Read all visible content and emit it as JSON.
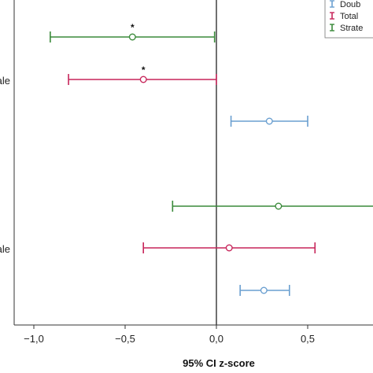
{
  "chart_data": {
    "type": "errorbar",
    "orientation": "horizontal",
    "xlabel": "95% CI z-score",
    "xlim": [
      -1.2,
      0.85
    ],
    "x_ticks": [
      -1.0,
      -0.5,
      0.0,
      0.5
    ],
    "x_tick_labels": [
      "−1,0",
      "−0,5",
      "0,0",
      "0,5"
    ],
    "reference_line": 0.0,
    "groups": [
      {
        "label": "ale",
        "rows": [
          {
            "series": "Strate",
            "mean": -0.46,
            "low": -0.91,
            "high": -0.01,
            "significant": true
          },
          {
            "series": "Total",
            "mean": -0.4,
            "low": -0.81,
            "high": 0.0,
            "significant": true
          },
          {
            "series": "Doub",
            "mean": 0.29,
            "low": 0.08,
            "high": 0.5,
            "significant": false
          }
        ]
      },
      {
        "label": "ale",
        "rows": [
          {
            "series": "Strate",
            "mean": 0.34,
            "low": -0.24,
            "high": 0.9,
            "significant": false
          },
          {
            "series": "Total",
            "mean": 0.07,
            "low": -0.4,
            "high": 0.54,
            "significant": false
          },
          {
            "series": "Doub",
            "mean": 0.26,
            "low": 0.13,
            "high": 0.4,
            "significant": false
          }
        ]
      }
    ],
    "legend": {
      "placement": "top-right",
      "entries": [
        {
          "name": "Doub",
          "color": "#6a9fd0"
        },
        {
          "name": "Total",
          "color": "#c7255a"
        },
        {
          "name": "Strate",
          "color": "#3a8a3a"
        }
      ]
    },
    "significance_marker": "*"
  }
}
